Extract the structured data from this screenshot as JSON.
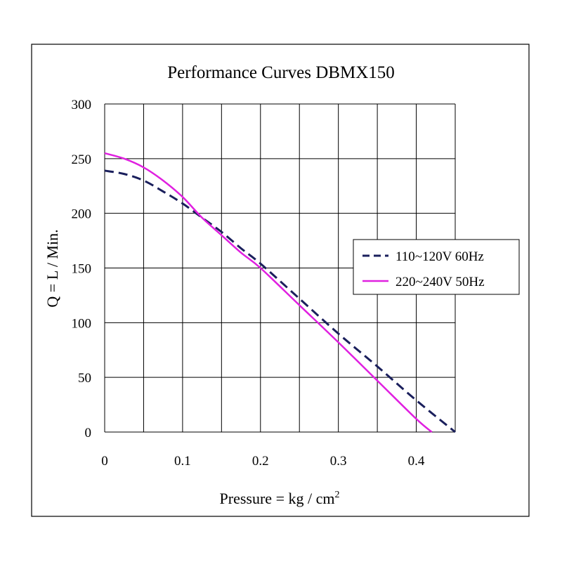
{
  "chart_data": {
    "type": "line",
    "title": "Performance  Curves  DBMX150",
    "xlabel": "Pressure = kg / cm",
    "xlabel_superscript": "2",
    "ylabel": "Q = L / Min.",
    "xlim": [
      0,
      0.45
    ],
    "ylim": [
      0,
      300
    ],
    "x_ticks": [
      0,
      0.1,
      0.2,
      0.3,
      0.4
    ],
    "x_tick_labels": [
      "0",
      "0.1",
      "0.2",
      "0.3",
      "0.4"
    ],
    "y_ticks": [
      0,
      50,
      100,
      150,
      200,
      250,
      300
    ],
    "y_tick_labels": [
      "0",
      "50",
      "100",
      "150",
      "200",
      "250",
      "300"
    ],
    "grid_x": [
      0,
      0.05,
      0.1,
      0.15,
      0.2,
      0.25,
      0.3,
      0.35,
      0.4,
      0.45
    ],
    "grid_y": [
      0,
      50,
      100,
      150,
      200,
      250,
      300
    ],
    "grid": true,
    "legend_position": "right",
    "series": [
      {
        "name": "110~120V 60Hz",
        "color": "#1a1f5c",
        "dash": "dashed",
        "x": [
          0,
          0.025,
          0.05,
          0.075,
          0.1,
          0.125,
          0.15,
          0.175,
          0.2,
          0.25,
          0.3,
          0.35,
          0.4,
          0.45
        ],
        "y": [
          239,
          236,
          230,
          220,
          209,
          196,
          183,
          168,
          154,
          122,
          90,
          60,
          29,
          0
        ]
      },
      {
        "name": "220~240V 50Hz",
        "color": "#e020e0",
        "dash": "solid",
        "x": [
          0,
          0.025,
          0.05,
          0.075,
          0.1,
          0.125,
          0.15,
          0.175,
          0.2,
          0.25,
          0.3,
          0.35,
          0.4,
          0.42
        ],
        "y": [
          255,
          250,
          242,
          230,
          215,
          196,
          180,
          164,
          150,
          116,
          82,
          47,
          12,
          0
        ]
      }
    ]
  }
}
